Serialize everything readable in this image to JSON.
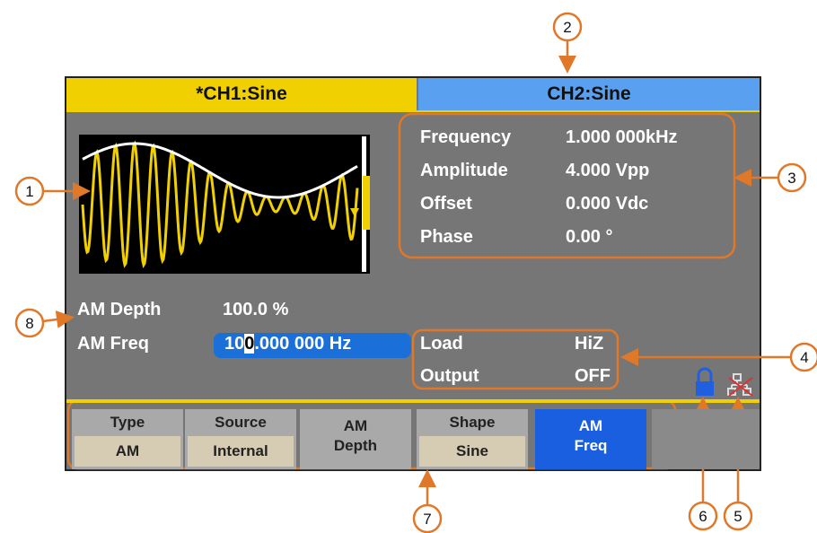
{
  "tabs": [
    "*CH1:Sine",
    "CH2:Sine"
  ],
  "params": [
    {
      "label": "Frequency",
      "value": "1.000 000kHz"
    },
    {
      "label": "Amplitude",
      "value": "4.000 Vpp"
    },
    {
      "label": "Offset",
      "value": "0.000 Vdc"
    },
    {
      "label": "Phase",
      "value": "0.00 °"
    }
  ],
  "modulation": [
    {
      "label": "AM Depth",
      "value": "100.0 %"
    },
    {
      "label": "AM Freq",
      "value": "100.000 000 Hz"
    }
  ],
  "output": [
    {
      "label": "Load",
      "value": "HiZ"
    },
    {
      "label": "Output",
      "value": "OFF"
    }
  ],
  "menu": [
    [
      "Type",
      "AM"
    ],
    [
      "Source",
      "Internal"
    ],
    [
      "AM",
      "Depth"
    ],
    [
      "Shape",
      "Sine"
    ],
    [
      "AM",
      "Freq"
    ]
  ],
  "callouts": [
    "1",
    "2",
    "3",
    "4",
    "5",
    "6",
    "7",
    "8"
  ]
}
